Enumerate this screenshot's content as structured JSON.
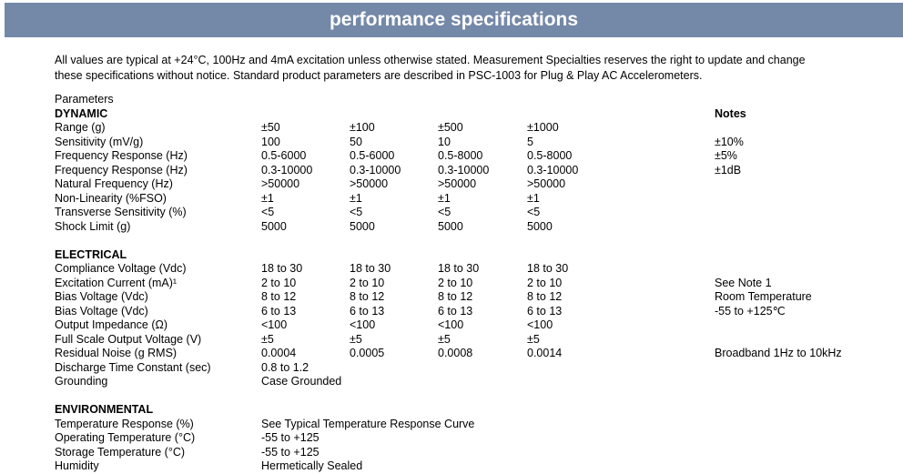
{
  "header": {
    "title": "performance specifications",
    "bar_color": "#7488a8"
  },
  "intro": {
    "text": "All values are typical at +24°C, 100Hz and 4mA excitation unless otherwise stated.  Measurement Specialties reserves the right to update and change\nthese specifications without notice. Standard product parameters are described in PSC-1003 for Plug & Play AC Accelerometers."
  },
  "table": {
    "parameters_label": "Parameters",
    "notes_label": "Notes",
    "sections": [
      {
        "name": "DYNAMIC",
        "rows": [
          {
            "label": "Range (g)",
            "values": [
              "±50",
              "±100",
              "±500",
              "±1000"
            ],
            "note": ""
          },
          {
            "label": "Sensitivity (mV/g)",
            "values": [
              "100",
              "50",
              "10",
              "5"
            ],
            "note": "±10%"
          },
          {
            "label": "Frequency Response (Hz)",
            "values": [
              "0.5-6000",
              "0.5-6000",
              "0.5-8000",
              "0.5-8000"
            ],
            "note": "±5%"
          },
          {
            "label": "Frequency Response (Hz)",
            "values": [
              "0.3-10000",
              "0.3-10000",
              "0.3-10000",
              "0.3-10000"
            ],
            "note": "±1dB"
          },
          {
            "label": "Natural Frequency (Hz)",
            "values": [
              ">50000",
              ">50000",
              ">50000",
              ">50000"
            ],
            "note": ""
          },
          {
            "label": "Non-Linearity (%FSO)",
            "values": [
              "±1",
              "±1",
              "±1",
              "±1"
            ],
            "note": ""
          },
          {
            "label": "Transverse Sensitivity (%)",
            "values": [
              "<5",
              "<5",
              "<5",
              "<5"
            ],
            "note": ""
          },
          {
            "label": "Shock Limit (g)",
            "values": [
              "5000",
              "5000",
              "5000",
              "5000"
            ],
            "note": ""
          }
        ]
      },
      {
        "name": "ELECTRICAL",
        "rows": [
          {
            "label": "Compliance Voltage (Vdc)",
            "values": [
              "18 to 30",
              "18 to 30",
              "18 to 30",
              "18 to 30"
            ],
            "note": ""
          },
          {
            "label": "Excitation Current (mA)¹",
            "values": [
              "2 to 10",
              "2 to 10",
              "2 to 10",
              "2 to 10"
            ],
            "note": "See Note 1"
          },
          {
            "label": "Bias Voltage (Vdc)",
            "values": [
              "8 to 12",
              "8 to 12",
              "8 to 12",
              "8 to 12"
            ],
            "note": "Room Temperature"
          },
          {
            "label": "Bias Voltage (Vdc)",
            "values": [
              "6 to 13",
              "6 to 13",
              "6 to 13",
              "6 to 13"
            ],
            "note": "-55 to +125℃"
          },
          {
            "label": "Output Impedance (Ω)",
            "values": [
              "<100",
              "<100",
              "<100",
              "<100"
            ],
            "note": ""
          },
          {
            "label": "Full Scale Output Voltage (V)",
            "values": [
              "±5",
              "±5",
              "±5",
              "±5"
            ],
            "note": ""
          },
          {
            "label": "Residual Noise (g RMS)",
            "values": [
              "0.0004",
              "0.0005",
              "0.0008",
              "0.0014"
            ],
            "note": "Broadband 1Hz to 10kHz"
          },
          {
            "label": "Discharge Time Constant (sec)",
            "values": [
              "0.8 to 1.2"
            ],
            "note": ""
          },
          {
            "label": "Grounding",
            "values": [
              "Case Grounded"
            ],
            "note": ""
          }
        ]
      },
      {
        "name": "ENVIRONMENTAL",
        "rows": [
          {
            "label": "Temperature Response (%)",
            "values": [
              "See Typical Temperature Response Curve"
            ],
            "note": ""
          },
          {
            "label": "Operating Temperature (°C)",
            "values": [
              "-55 to +125"
            ],
            "note": ""
          },
          {
            "label": "Storage Temperature (°C)",
            "values": [
              "-55 to +125"
            ],
            "note": ""
          },
          {
            "label": "Humidity",
            "values": [
              "Hermetically Sealed"
            ],
            "note": ""
          }
        ]
      }
    ]
  }
}
